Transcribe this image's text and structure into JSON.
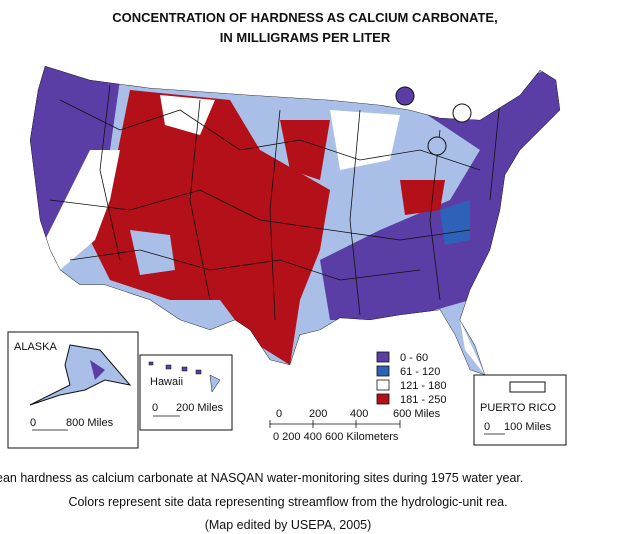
{
  "title": [
    "CONCENTRATION OF HARDNESS AS CALCIUM CARBONATE,",
    "IN MILLIGRAMS PER LITER"
  ],
  "legend": [
    {
      "label": "0 - 60",
      "color": "#5a3ea6"
    },
    {
      "label": "61 - 120",
      "color": "#2e62b8"
    },
    {
      "label": "121 - 180",
      "color": "#ffffff"
    },
    {
      "label": "181 - 250",
      "color": "#b3101a"
    }
  ],
  "insets": {
    "alaska": {
      "label": "ALASKA",
      "scale_zero": "0",
      "scale_label": "800 Miles"
    },
    "hawaii": {
      "label": "Hawaii",
      "scale_zero": "0",
      "scale_label": "200 Miles"
    },
    "puerto_rico": {
      "label": "PUERTO RICO",
      "scale_zero": "0",
      "scale_label": "100 Miles"
    }
  },
  "scale_bar": {
    "miles": [
      "0",
      "200",
      "400",
      "600 Miles"
    ],
    "kilometers": "0   200  400  600 Kilometers"
  },
  "caption": [
    "ean hardness as calcium carbonate at NASQAN water-monitoring sites during 1975 water year.",
    "Colors represent site data representing streamflow from the hydrologic-unit rea.",
    "(Map edited by USEPA, 2005)"
  ]
}
